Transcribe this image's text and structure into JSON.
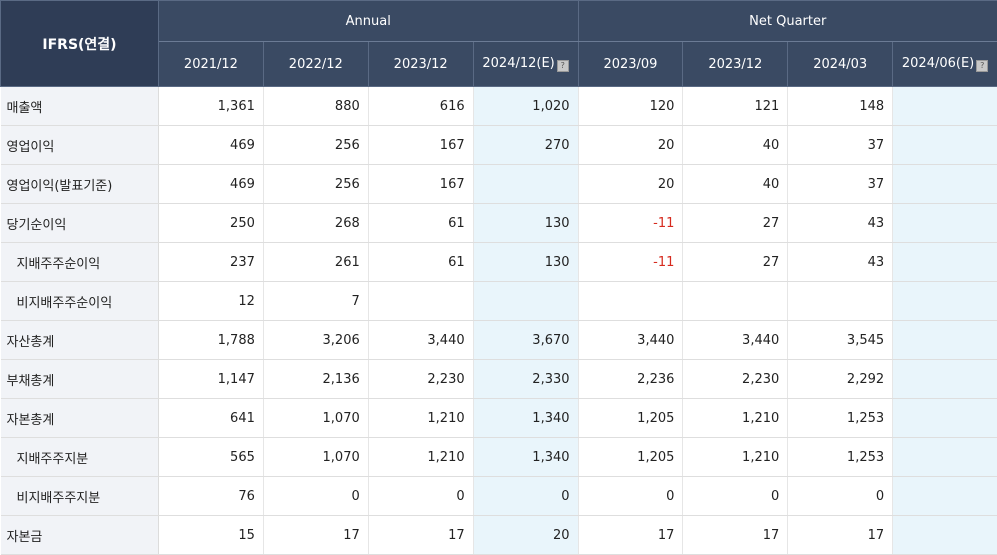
{
  "header": {
    "corner": "IFRS(연결)",
    "groups": {
      "annual": "Annual",
      "quarter": "Net Quarter"
    },
    "periods": [
      "2021/12",
      "2022/12",
      "2023/12",
      "2024/12(E)",
      "2023/09",
      "2023/12",
      "2024/03",
      "2024/06(E)"
    ],
    "estimate_icon": "help-icon"
  },
  "rows": [
    {
      "label": "매출액",
      "values": [
        "1,361",
        "880",
        "616",
        "1,020",
        "120",
        "121",
        "148",
        ""
      ]
    },
    {
      "label": "영업이익",
      "values": [
        "469",
        "256",
        "167",
        "270",
        "20",
        "40",
        "37",
        ""
      ]
    },
    {
      "label": "영업이익(발표기준)",
      "values": [
        "469",
        "256",
        "167",
        "",
        "20",
        "40",
        "37",
        ""
      ]
    },
    {
      "label": "당기순이익",
      "values": [
        "250",
        "268",
        "61",
        "130",
        "-11",
        "27",
        "43",
        ""
      ]
    },
    {
      "label": "지배주주순이익",
      "values": [
        "237",
        "261",
        "61",
        "130",
        "-11",
        "27",
        "43",
        ""
      ]
    },
    {
      "label": "비지배주주순이익",
      "values": [
        "12",
        "7",
        "",
        "",
        "",
        "",
        "",
        ""
      ]
    },
    {
      "label": "자산총계",
      "values": [
        "1,788",
        "3,206",
        "3,440",
        "3,670",
        "3,440",
        "3,440",
        "3,545",
        ""
      ]
    },
    {
      "label": "부채총계",
      "values": [
        "1,147",
        "2,136",
        "2,230",
        "2,330",
        "2,236",
        "2,230",
        "2,292",
        ""
      ]
    },
    {
      "label": "자본총계",
      "values": [
        "641",
        "1,070",
        "1,210",
        "1,340",
        "1,205",
        "1,210",
        "1,253",
        ""
      ]
    },
    {
      "label": "지배주주지분",
      "values": [
        "565",
        "1,070",
        "1,210",
        "1,340",
        "1,205",
        "1,210",
        "1,253",
        ""
      ]
    },
    {
      "label": "비지배주주지분",
      "values": [
        "76",
        "0",
        "0",
        "0",
        "0",
        "0",
        "0",
        ""
      ]
    },
    {
      "label": "자본금",
      "values": [
        "15",
        "17",
        "17",
        "20",
        "17",
        "17",
        "17",
        ""
      ]
    }
  ],
  "colors": {
    "header_bg": "#3a4a63",
    "estimate_bg": "#e9f5fb",
    "label_bg": "#f1f3f7",
    "negative": "#d62a1e"
  }
}
